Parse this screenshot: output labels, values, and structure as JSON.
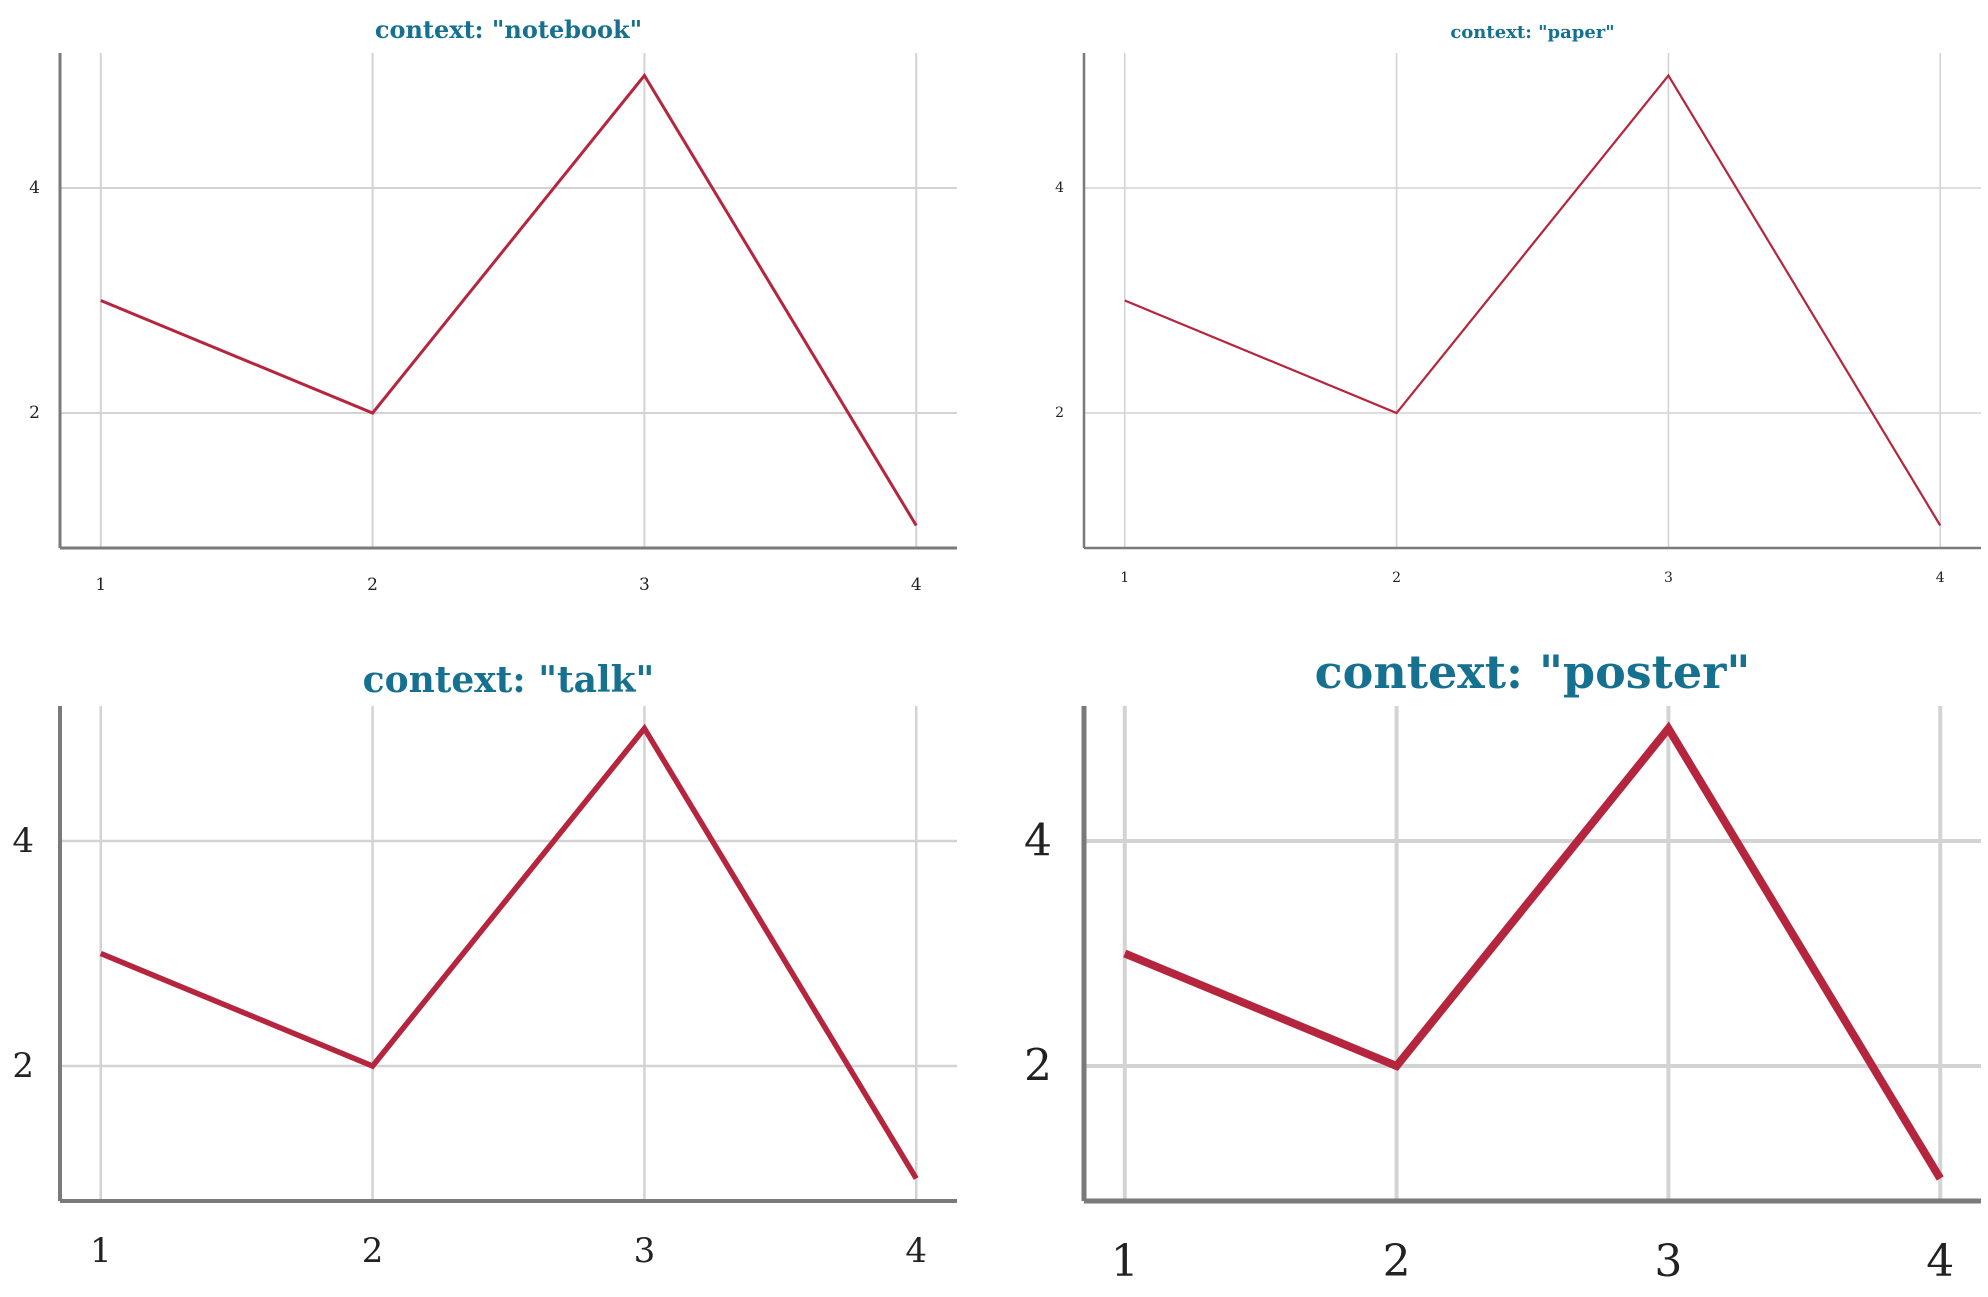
{
  "chart_data": [
    {
      "type": "line",
      "title": "context: \"notebook\"",
      "x": [
        1,
        2,
        3,
        4
      ],
      "series": [
        {
          "values": [
            3,
            2,
            5,
            1
          ]
        }
      ],
      "xticks": [
        "1",
        "2",
        "3",
        "4"
      ],
      "yticks": [
        "2",
        "4"
      ],
      "grid": true,
      "xlabel": "",
      "ylabel": "",
      "line_color": "#b5263e"
    },
    {
      "type": "line",
      "title": "context: \"paper\"",
      "x": [
        1,
        2,
        3,
        4
      ],
      "series": [
        {
          "values": [
            3,
            2,
            5,
            1
          ]
        }
      ],
      "xticks": [
        "1",
        "2",
        "3",
        "4"
      ],
      "yticks": [
        "2",
        "4"
      ],
      "grid": true,
      "xlabel": "",
      "ylabel": "",
      "line_color": "#b5263e"
    },
    {
      "type": "line",
      "title": "context: \"talk\"",
      "x": [
        1,
        2,
        3,
        4
      ],
      "series": [
        {
          "values": [
            3,
            2,
            5,
            1
          ]
        }
      ],
      "xticks": [
        "1",
        "2",
        "3",
        "4"
      ],
      "yticks": [
        "2",
        "4"
      ],
      "grid": true,
      "xlabel": "",
      "ylabel": "",
      "line_color": "#b5263e"
    },
    {
      "type": "line",
      "title": "context: \"poster\"",
      "x": [
        1,
        2,
        3,
        4
      ],
      "series": [
        {
          "values": [
            3,
            2,
            5,
            1
          ]
        }
      ],
      "xticks": [
        "1",
        "2",
        "3",
        "4"
      ],
      "yticks": [
        "2",
        "4"
      ],
      "grid": true,
      "xlabel": "",
      "ylabel": "",
      "line_color": "#b5263e"
    }
  ],
  "colors": {
    "title": "#16708f",
    "line": "#b5263e",
    "grid": "#d3d3d3",
    "axis": "#7a7a7a"
  }
}
